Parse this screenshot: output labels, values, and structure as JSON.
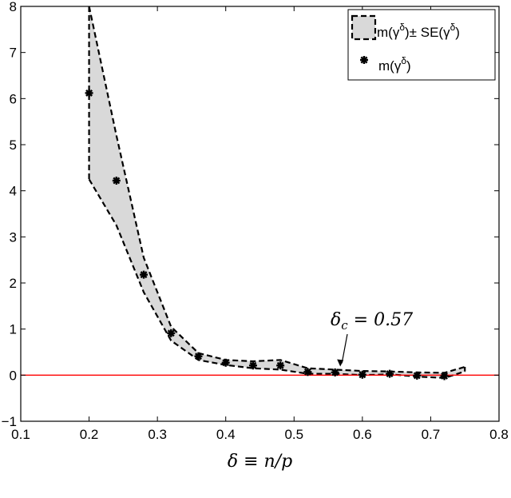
{
  "chart_data": {
    "type": "line",
    "xlabel": "δ ≡ n/p",
    "ylabel": "",
    "xlim": [
      0.1,
      0.8
    ],
    "ylim": [
      -1,
      8
    ],
    "xticks": [
      0.1,
      0.2,
      0.3,
      0.4,
      0.5,
      0.6,
      0.7,
      0.8
    ],
    "yticks": [
      -1,
      0,
      1,
      2,
      3,
      4,
      5,
      6,
      7,
      8
    ],
    "xtick_labels": [
      "0.1",
      "0.2",
      "0.3",
      "0.4",
      "0.5",
      "0.6",
      "0.7",
      "0.8"
    ],
    "ytick_labels": [
      "−1",
      "0",
      "1",
      "2",
      "3",
      "4",
      "5",
      "6",
      "7",
      "8"
    ],
    "grid": false,
    "legend_position": "top-right",
    "series": [
      {
        "name": "m(γ^δ) ± SE(γ^δ)",
        "kind": "band",
        "x": [
          0.2,
          0.24,
          0.28,
          0.32,
          0.36,
          0.4,
          0.44,
          0.48,
          0.52,
          0.56,
          0.6,
          0.64,
          0.68,
          0.72,
          0.75
        ],
        "upper": [
          8.0,
          5.2,
          2.55,
          1.05,
          0.48,
          0.33,
          0.3,
          0.33,
          0.15,
          0.12,
          0.09,
          0.08,
          0.06,
          0.05,
          0.18
        ],
        "lower": [
          4.25,
          3.25,
          1.8,
          0.75,
          0.33,
          0.22,
          0.15,
          0.12,
          0.03,
          0.03,
          0.0,
          0.02,
          -0.03,
          -0.06,
          0.08
        ]
      },
      {
        "name": "m(γ^δ)",
        "kind": "points",
        "x": [
          0.2,
          0.24,
          0.28,
          0.32,
          0.36,
          0.4,
          0.44,
          0.48,
          0.52,
          0.56,
          0.6,
          0.64,
          0.68,
          0.72
        ],
        "y": [
          6.12,
          4.22,
          2.18,
          0.91,
          0.41,
          0.27,
          0.21,
          0.21,
          0.07,
          0.06,
          0.01,
          0.03,
          -0.01,
          -0.02
        ]
      }
    ],
    "reference_line": {
      "y": 0,
      "color": "#ff0000"
    },
    "annotation": {
      "label": "δ_c = 0.57",
      "text_main": "δ",
      "text_sub": "c",
      "text_rest": " = 0.57",
      "x": 0.57,
      "y": 0.05
    },
    "legend": {
      "band": {
        "prefix": "m(γ",
        "sup1": "δ",
        "mid": ")± SE(γ",
        "sup2": "δ",
        "suffix": ")"
      },
      "points": {
        "prefix": "m(γ",
        "sup1": "δ",
        "suffix": ")"
      }
    },
    "colors": {
      "band_fill": "#d9d9d9",
      "band_edge": "#000000",
      "points": "#000000",
      "reference": "#ff0000"
    }
  }
}
